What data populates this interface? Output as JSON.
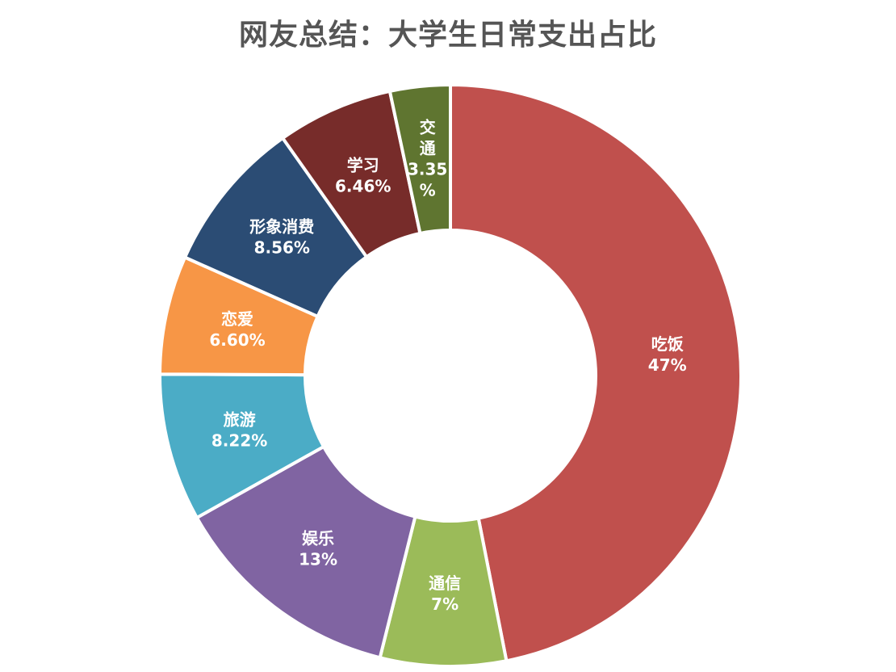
{
  "chart_data": {
    "type": "pie",
    "subtype": "donut",
    "title": "网友总结：大学生日常支出占比",
    "legend": "none",
    "start": "top, clockwise",
    "slices": [
      {
        "label": "吃饭",
        "value": 47,
        "display": "47%",
        "color": "#c0504d"
      },
      {
        "label": "通信",
        "value": 7,
        "display": "7%",
        "color": "#9bbb59"
      },
      {
        "label": "娱乐",
        "value": 13,
        "display": "13%",
        "color": "#8064a2"
      },
      {
        "label": "旅游",
        "value": 8.22,
        "display": "8.22%",
        "color": "#4bacc6"
      },
      {
        "label": "恋爱",
        "value": 6.6,
        "display": "6.60%",
        "color": "#f79646"
      },
      {
        "label": "形象消费",
        "value": 8.56,
        "display": "8.56%",
        "color": "#2b4c74"
      },
      {
        "label": "学习",
        "value": 6.46,
        "display": "6.46%",
        "color": "#772c2a"
      },
      {
        "label": "交通",
        "value": 3.35,
        "display": "3.35%",
        "color": "#5f7530"
      }
    ]
  }
}
